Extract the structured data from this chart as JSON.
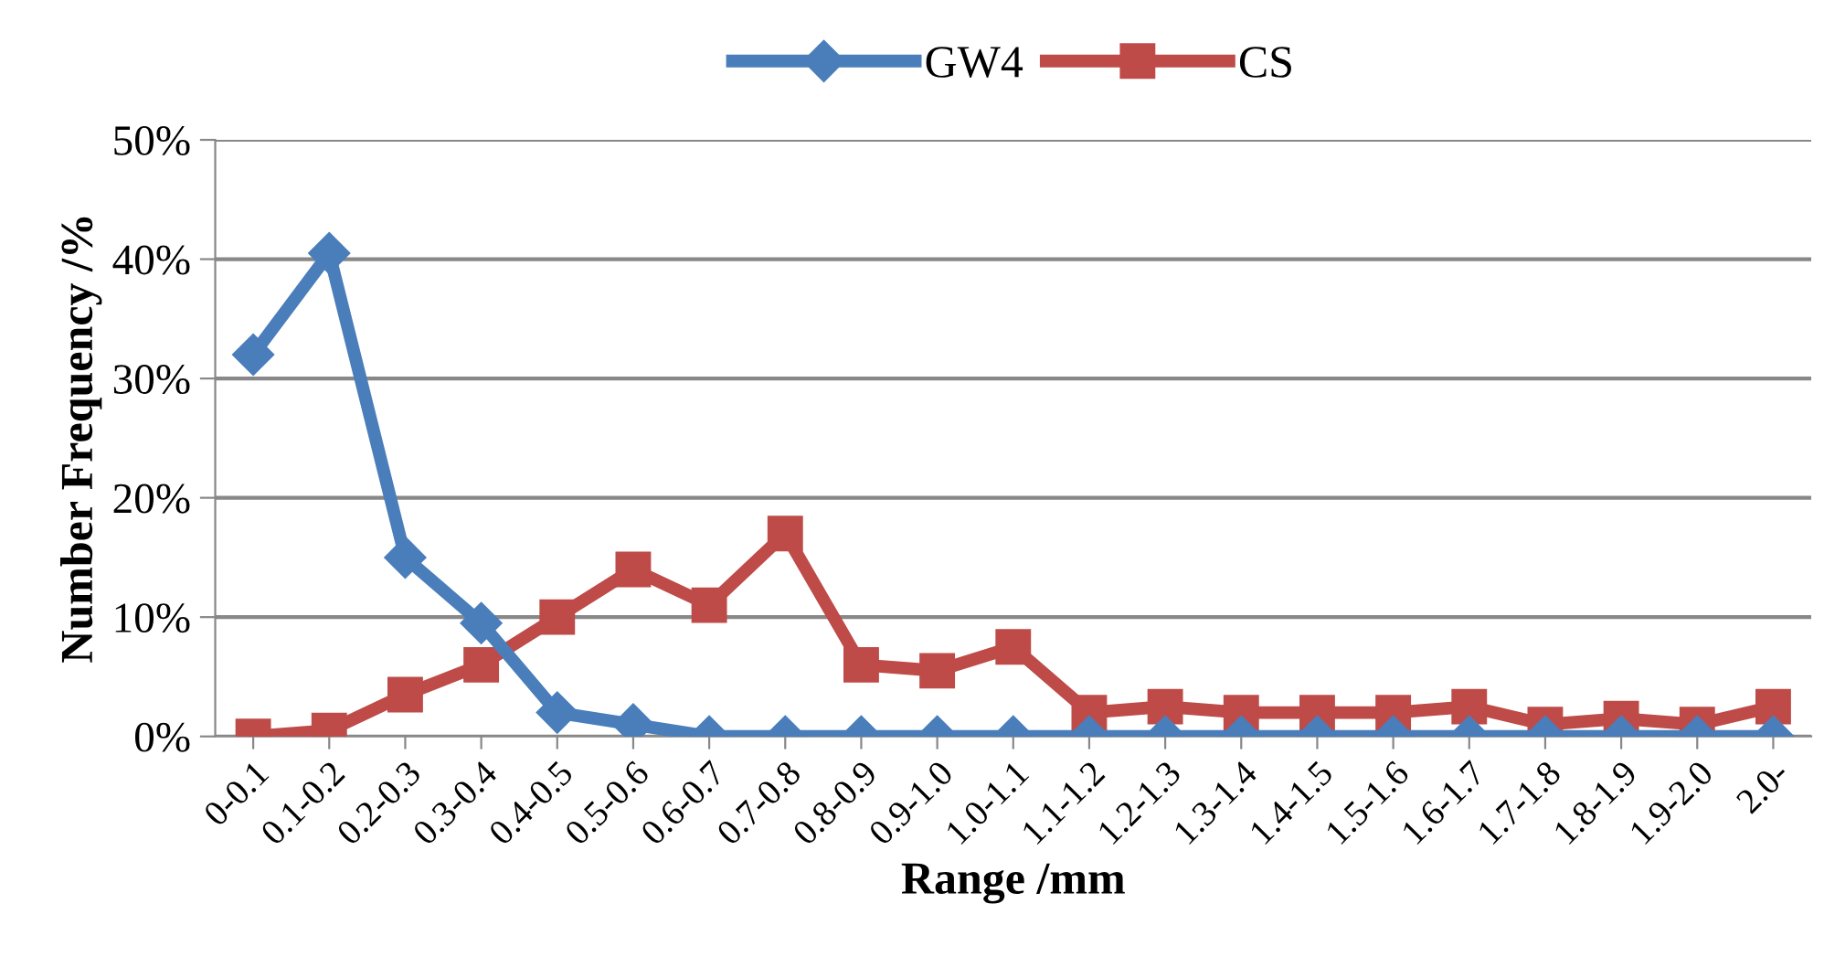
{
  "chart_data": {
    "type": "line",
    "xlabel": "Range /mm",
    "ylabel": "Number Frequency /%",
    "categories": [
      "0-0.1",
      "0.1-0.2",
      "0.2-0.3",
      "0.3-0.4",
      "0.4-0.5",
      "0.5-0.6",
      "0.6-0.7",
      "0.7-0.8",
      "0.8-0.9",
      "0.9-1.0",
      "1.0-1.1",
      "1.1-1.2",
      "1.2-1.3",
      "1.3-1.4",
      "1.4-1.5",
      "1.5-1.6",
      "1.6-1.7",
      "1.7-1.8",
      "1.8-1.9",
      "1.9-2.0",
      "2.0-"
    ],
    "series": [
      {
        "name": "GW4",
        "color": "#4a7ebb",
        "marker": "diamond",
        "values": [
          32,
          40.5,
          15,
          9.5,
          2,
          1,
          0,
          0,
          0,
          0,
          0,
          0,
          0,
          0,
          0,
          0,
          0,
          0,
          0,
          0,
          0
        ]
      },
      {
        "name": "CS",
        "color": "#be4b48",
        "marker": "square",
        "values": [
          0,
          0.5,
          3.5,
          6,
          10,
          14,
          11,
          17,
          6,
          5.5,
          7.5,
          2,
          2.5,
          2,
          2,
          2,
          2.5,
          1,
          1.5,
          1,
          2.5
        ]
      }
    ],
    "ylim": [
      0,
      50
    ],
    "yticks": [
      {
        "value": 0,
        "label": "0%"
      },
      {
        "value": 10,
        "label": "10%"
      },
      {
        "value": 20,
        "label": "20%"
      },
      {
        "value": 30,
        "label": "30%"
      },
      {
        "value": 40,
        "label": "40%"
      },
      {
        "value": 50,
        "label": "50%"
      }
    ],
    "grid": "y",
    "legend": "top"
  }
}
